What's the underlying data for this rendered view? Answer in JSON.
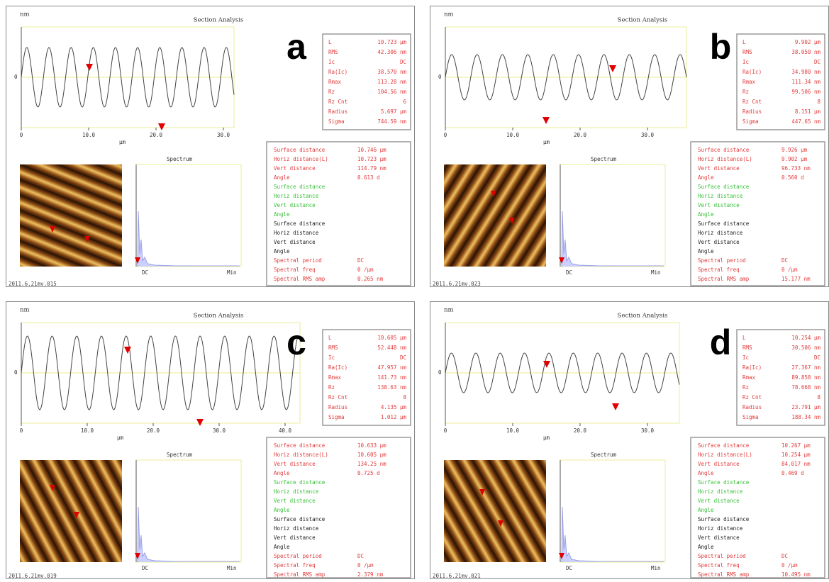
{
  "shared": {
    "title": "Section Analysis",
    "y_unit": "nm",
    "x_unit": "µm",
    "y_zero": "0",
    "spectrum_title": "Spectrum",
    "spectrum_dc": "DC",
    "spectrum_min": "Min",
    "stat_labels": [
      "L",
      "RMS",
      "Ic",
      "Ra(Ic)",
      "Rmax",
      "Rz",
      "Rz Cnt",
      "Radius",
      "Sigma"
    ],
    "measure_labels": [
      "Surface distance",
      "Horiz distance(L)",
      "Vert distance",
      "Angle"
    ],
    "green_labels": [
      "Surface distance",
      "Horiz distance",
      "Vert distance",
      "Angle"
    ],
    "black_labels": [
      "Surface distance",
      "Horiz distance",
      "Vert distance",
      "Angle"
    ],
    "spectral_labels": [
      "Spectral period",
      "Spectral freq",
      "Spectral RMS amp"
    ]
  },
  "panels": [
    {
      "letter": "a",
      "file": "2011.6.21mv.015",
      "xticks": [
        "0",
        "10.0",
        "20.0",
        "30.0"
      ],
      "stats": [
        "10.723 µm",
        "42.306 nm",
        "DC",
        "38.570 nm",
        "113.28 nm",
        "104.56 nm",
        "6",
        "5.697 µm",
        "744.59 nm"
      ],
      "measures": [
        "10.746 µm",
        "10.723 µm",
        "114.79 nm",
        "0.613 d"
      ],
      "spectral": [
        "DC",
        "0 /µm",
        "0.265 nm"
      ]
    },
    {
      "letter": "b",
      "file": "2011.6.21mv.023",
      "xticks": [
        "0",
        "10.0",
        "20.0",
        "30.0"
      ],
      "stats": [
        "9.902 µm",
        "38.050 nm",
        "DC",
        "34.980 nm",
        "111.34 nm",
        "99.506 nm",
        "8",
        "8.151 µm",
        "447.65 nm"
      ],
      "measures": [
        "9.926 µm",
        "9.902 µm",
        "96.733 nm",
        "0.560 d"
      ],
      "spectral": [
        "DC",
        "0 /µm",
        "15.177 nm"
      ]
    },
    {
      "letter": "c",
      "file": "2011.6.21mv.019",
      "xticks": [
        "0",
        "10.0",
        "20.0",
        "30.0",
        "40.0"
      ],
      "stats": [
        "10.605 µm",
        "52.448 nm",
        "DC",
        "47.957 nm",
        "141.73 nm",
        "138.63 nm",
        "8",
        "4.135 µm",
        "1.012 µm"
      ],
      "measures": [
        "10.633 µm",
        "10.605 µm",
        "134.25 nm",
        "0.725 d"
      ],
      "spectral": [
        "DC",
        "0 /µm",
        "2.379 nm"
      ]
    },
    {
      "letter": "d",
      "file": "2011.6.21mv.021",
      "xticks": [
        "0",
        "10.0",
        "20.0",
        "30.0"
      ],
      "stats": [
        "10.254 µm",
        "30.506 nm",
        "DC",
        "27.367 nm",
        "89.858 nm",
        "78.668 nm",
        "8",
        "23.791 µm",
        "188.34 nm"
      ],
      "measures": [
        "10.267 µm",
        "10.254 µm",
        "84.017 nm",
        "0.469 d"
      ],
      "spectral": [
        "DC",
        "0 /µm",
        "10.495 nm"
      ]
    }
  ]
}
